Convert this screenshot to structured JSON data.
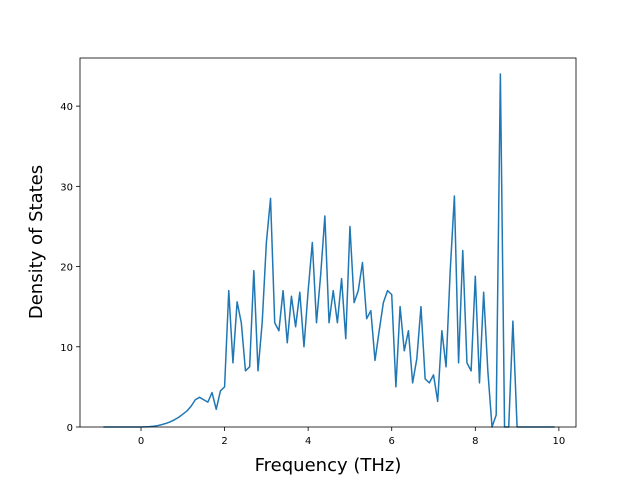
{
  "chart_data": {
    "type": "line",
    "x_label": "Frequency (THz)",
    "y_label": "Density of States",
    "x": [
      -0.9,
      -0.8,
      -0.7,
      -0.6,
      -0.5,
      -0.4,
      -0.3,
      -0.2,
      -0.1,
      0.0,
      0.1,
      0.2,
      0.3,
      0.4,
      0.5,
      0.6,
      0.7,
      0.8,
      0.9,
      1.0,
      1.1,
      1.2,
      1.3,
      1.4,
      1.5,
      1.6,
      1.7,
      1.8,
      1.9,
      2.0,
      2.1,
      2.2,
      2.3,
      2.4,
      2.5,
      2.6,
      2.7,
      2.8,
      2.9,
      3.0,
      3.1,
      3.2,
      3.3,
      3.4,
      3.5,
      3.6,
      3.7,
      3.8,
      3.9,
      4.0,
      4.1,
      4.2,
      4.3,
      4.4,
      4.5,
      4.6,
      4.7,
      4.8,
      4.9,
      5.0,
      5.1,
      5.2,
      5.3,
      5.4,
      5.5,
      5.6,
      5.7,
      5.8,
      5.9,
      6.0,
      6.1,
      6.2,
      6.3,
      6.4,
      6.5,
      6.6,
      6.7,
      6.8,
      6.9,
      7.0,
      7.1,
      7.2,
      7.3,
      7.4,
      7.5,
      7.6,
      7.7,
      7.8,
      7.9,
      8.0,
      8.1,
      8.2,
      8.3,
      8.4,
      8.5,
      8.6,
      8.7,
      8.8,
      8.9,
      9.0,
      9.1,
      9.2,
      9.3,
      9.4,
      9.5,
      9.6,
      9.7,
      9.8,
      9.9
    ],
    "series": [
      {
        "color": "#1f77b4",
        "values": [
          0,
          0,
          0,
          0,
          0,
          0,
          0,
          0,
          0,
          0,
          0.02,
          0.05,
          0.1,
          0.18,
          0.3,
          0.45,
          0.65,
          0.9,
          1.2,
          1.6,
          2.0,
          2.6,
          3.4,
          3.7,
          3.4,
          3.1,
          4.3,
          2.2,
          4.5,
          5,
          17,
          8,
          15.6,
          13,
          7,
          7.5,
          19.5,
          7,
          13,
          23,
          28.5,
          13,
          12,
          17,
          10.5,
          16.3,
          12.5,
          16.8,
          10,
          17,
          23,
          13,
          19,
          26.3,
          13,
          17,
          13,
          18.5,
          11,
          25,
          15.5,
          17,
          20.5,
          13.5,
          14.5,
          8.3,
          12,
          15.5,
          17,
          16.5,
          5,
          15,
          9.5,
          12,
          5.5,
          8.5,
          15,
          6,
          5.5,
          6.5,
          3.2,
          12,
          7.5,
          19.5,
          28.8,
          8,
          22,
          8,
          7,
          18.8,
          5.5,
          16.8,
          7,
          0,
          1.5,
          44,
          0,
          0,
          13.2,
          0,
          0,
          0,
          0,
          0,
          0,
          0,
          0,
          0,
          0
        ]
      }
    ],
    "xlim": [
      -1.46,
      10.41
    ],
    "ylim": [
      0,
      46
    ],
    "xticks": [
      0,
      2,
      4,
      6,
      8,
      10
    ],
    "yticks": [
      0,
      10,
      20,
      30,
      40
    ]
  }
}
